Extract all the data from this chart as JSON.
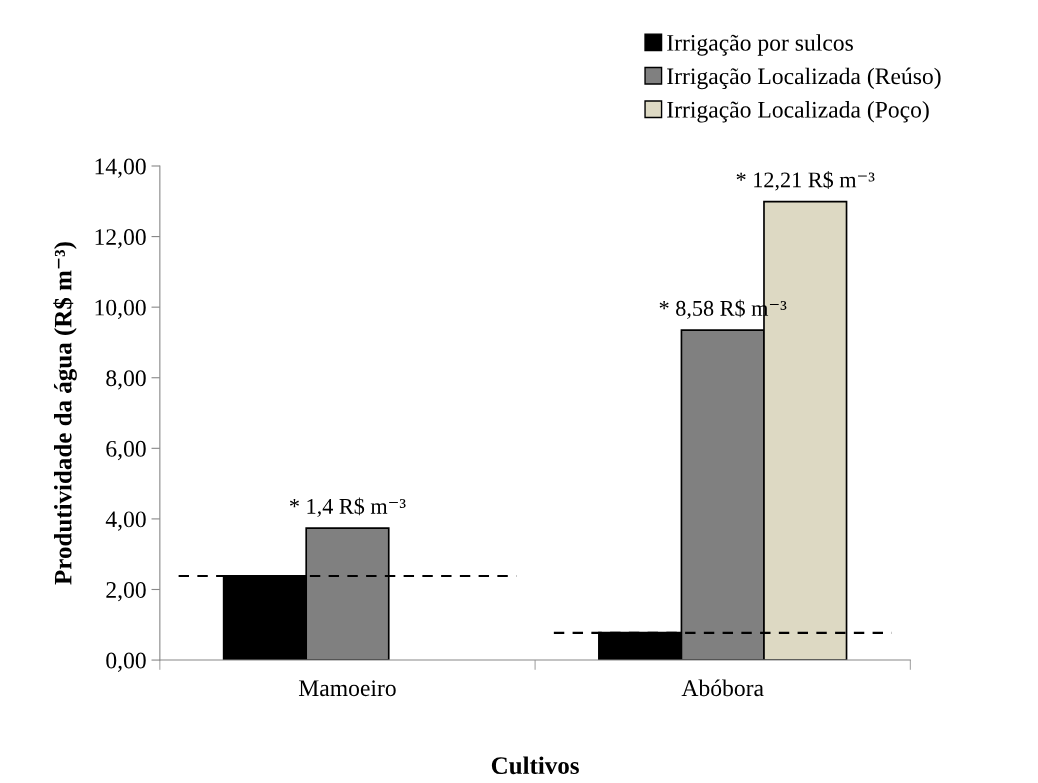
{
  "chart_data": {
    "type": "bar",
    "xlabel": "Cultivos",
    "ylabel": "Produtividade da água (R$ m⁻³)",
    "categories": [
      "Mamoeiro",
      "Abóbora"
    ],
    "series": [
      {
        "name": "Irrigação por sulcos",
        "color": "#000000",
        "values": [
          2.39,
          0.78
        ]
      },
      {
        "name": "Irrigação Localizada (Reúso)",
        "color": "#808080",
        "values": [
          3.74,
          9.35
        ]
      },
      {
        "name": "Irrigação Localizada (Poço)",
        "color": "#ddd9c3",
        "values": [
          null,
          12.99
        ]
      }
    ],
    "annotations": [
      "* 1,4 R$ m⁻³",
      "* 8,58 R$ m⁻³",
      "* 12,21 R$ m⁻³"
    ],
    "ylim": [
      0,
      14
    ],
    "yticks": [
      {
        "value": 0,
        "label": "0,00"
      },
      {
        "value": 2,
        "label": "2,00"
      },
      {
        "value": 4,
        "label": "4,00"
      },
      {
        "value": 6,
        "label": "6,00"
      },
      {
        "value": 8,
        "label": "8,00"
      },
      {
        "value": 10,
        "label": "10,00"
      },
      {
        "value": 12,
        "label": "12,00"
      },
      {
        "value": 14,
        "label": "14,00"
      }
    ],
    "ref_lines": [
      {
        "axis": "y",
        "value": 2.38,
        "color": "#000000",
        "line_style": "dashed"
      },
      {
        "axis": "y",
        "value": 0.77,
        "color": "#000000",
        "line_style": "dashed"
      }
    ],
    "grid": false,
    "legend": "top right"
  }
}
